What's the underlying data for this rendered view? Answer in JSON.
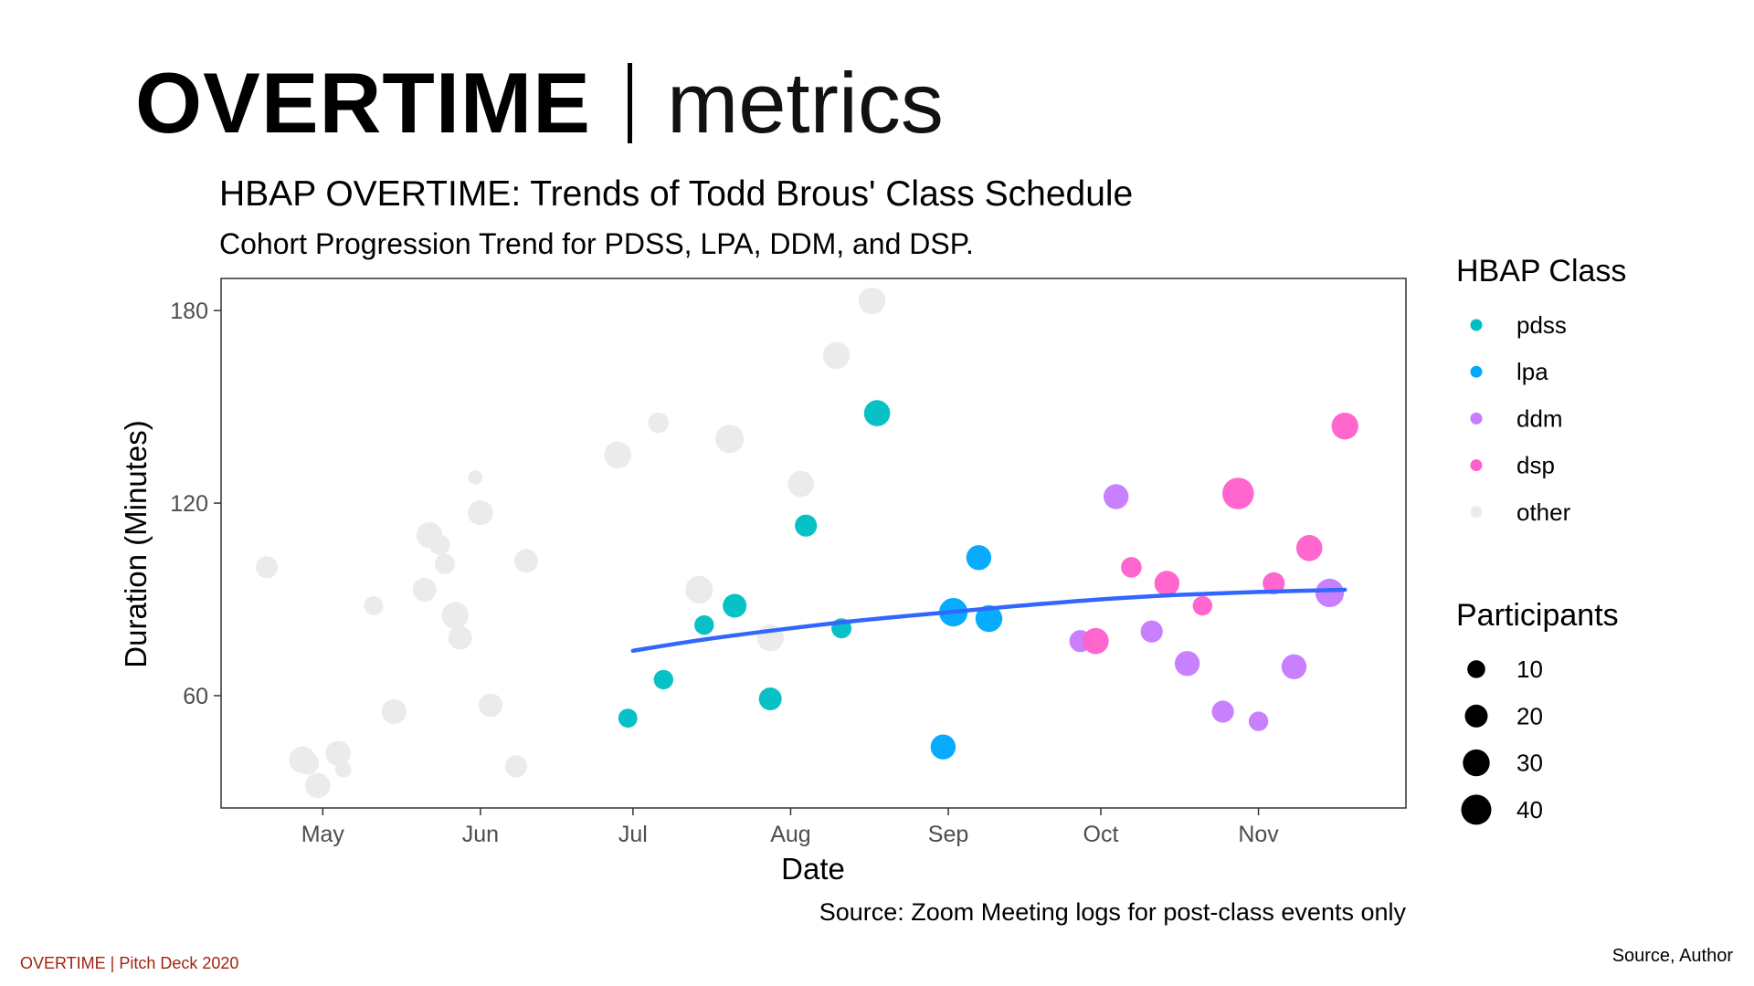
{
  "slide": {
    "title_bold": "OVERTIME",
    "title_light": "metrics",
    "footer_left": "OVERTIME |  Pitch Deck 2020",
    "footer_right": "Source, Author"
  },
  "chart_data": {
    "type": "scatter",
    "title": "HBAP OVERTIME: Trends of Todd Brous' Class Schedule",
    "subtitle": "Cohort Progression Trend for PDSS, LPA, DDM, and DSP.",
    "xlabel": "Date",
    "ylabel": "Duration (Minutes)",
    "caption": "Source: Zoom Meeting logs for post-class events only",
    "x_ticks": [
      "May",
      "Jun",
      "Jul",
      "Aug",
      "Sep",
      "Oct",
      "Nov"
    ],
    "x_tick_dates": [
      "2020-05-01",
      "2020-06-01",
      "2020-07-01",
      "2020-08-01",
      "2020-09-01",
      "2020-10-01",
      "2020-11-01"
    ],
    "xlim": [
      "2020-04-11",
      "2020-11-30"
    ],
    "y_ticks": [
      60,
      120,
      180
    ],
    "ylim": [
      25,
      190
    ],
    "grid": false,
    "legend_placement": "right",
    "colors": {
      "pdss": "#00bfc4",
      "lpa": "#00a9ff",
      "ddm": "#c77cff",
      "dsp": "#ff61cc",
      "other": "#ebebeb",
      "trend": "#3366ff"
    },
    "legend_color": {
      "title": "HBAP Class",
      "items": [
        {
          "key": "pdss",
          "label": "pdss"
        },
        {
          "key": "lpa",
          "label": "lpa"
        },
        {
          "key": "ddm",
          "label": "ddm"
        },
        {
          "key": "dsp",
          "label": "dsp"
        },
        {
          "key": "other",
          "label": "other"
        }
      ]
    },
    "legend_size": {
      "title": "Participants",
      "items": [
        {
          "value": 10,
          "label": "10"
        },
        {
          "value": 20,
          "label": "20"
        },
        {
          "value": 30,
          "label": "30"
        },
        {
          "value": 40,
          "label": "40"
        }
      ]
    },
    "points": [
      {
        "date": "2020-04-20",
        "y": 100,
        "p": 18,
        "cls": "other"
      },
      {
        "date": "2020-04-27",
        "y": 40,
        "p": 30,
        "cls": "other"
      },
      {
        "date": "2020-04-28",
        "y": 39,
        "p": 20,
        "cls": "other"
      },
      {
        "date": "2020-04-30",
        "y": 32,
        "p": 25,
        "cls": "other"
      },
      {
        "date": "2020-05-04",
        "y": 42,
        "p": 25,
        "cls": "other"
      },
      {
        "date": "2020-05-05",
        "y": 37,
        "p": 8,
        "cls": "other"
      },
      {
        "date": "2020-05-11",
        "y": 88,
        "p": 12,
        "cls": "other"
      },
      {
        "date": "2020-05-15",
        "y": 55,
        "p": 25,
        "cls": "other"
      },
      {
        "date": "2020-05-21",
        "y": 93,
        "p": 22,
        "cls": "other"
      },
      {
        "date": "2020-05-22",
        "y": 110,
        "p": 28,
        "cls": "other"
      },
      {
        "date": "2020-05-24",
        "y": 107,
        "p": 15,
        "cls": "other"
      },
      {
        "date": "2020-05-25",
        "y": 101,
        "p": 14,
        "cls": "other"
      },
      {
        "date": "2020-05-27",
        "y": 85,
        "p": 30,
        "cls": "other"
      },
      {
        "date": "2020-05-28",
        "y": 78,
        "p": 22,
        "cls": "other"
      },
      {
        "date": "2020-05-31",
        "y": 128,
        "p": 5,
        "cls": "other"
      },
      {
        "date": "2020-06-01",
        "y": 117,
        "p": 25,
        "cls": "other"
      },
      {
        "date": "2020-06-03",
        "y": 57,
        "p": 22,
        "cls": "other"
      },
      {
        "date": "2020-06-08",
        "y": 38,
        "p": 18,
        "cls": "other"
      },
      {
        "date": "2020-06-10",
        "y": 102,
        "p": 22,
        "cls": "other"
      },
      {
        "date": "2020-06-28",
        "y": 135,
        "p": 30,
        "cls": "other"
      },
      {
        "date": "2020-07-06",
        "y": 145,
        "p": 15,
        "cls": "other"
      },
      {
        "date": "2020-07-14",
        "y": 93,
        "p": 32,
        "cls": "other"
      },
      {
        "date": "2020-07-20",
        "y": 140,
        "p": 35,
        "cls": "other"
      },
      {
        "date": "2020-07-28",
        "y": 78,
        "p": 30,
        "cls": "other"
      },
      {
        "date": "2020-08-03",
        "y": 126,
        "p": 28,
        "cls": "other"
      },
      {
        "date": "2020-08-10",
        "y": 166,
        "p": 30,
        "cls": "other"
      },
      {
        "date": "2020-08-17",
        "y": 183,
        "p": 30,
        "cls": "other"
      },
      {
        "date": "2020-06-30",
        "y": 53,
        "p": 12,
        "cls": "pdss"
      },
      {
        "date": "2020-07-07",
        "y": 65,
        "p": 13,
        "cls": "pdss"
      },
      {
        "date": "2020-07-15",
        "y": 82,
        "p": 13,
        "cls": "pdss"
      },
      {
        "date": "2020-07-21",
        "y": 88,
        "p": 22,
        "cls": "pdss"
      },
      {
        "date": "2020-07-28",
        "y": 59,
        "p": 20,
        "cls": "pdss"
      },
      {
        "date": "2020-08-04",
        "y": 113,
        "p": 18,
        "cls": "pdss"
      },
      {
        "date": "2020-08-11",
        "y": 81,
        "p": 14,
        "cls": "pdss"
      },
      {
        "date": "2020-08-18",
        "y": 148,
        "p": 28,
        "cls": "pdss"
      },
      {
        "date": "2020-08-31",
        "y": 44,
        "p": 25,
        "cls": "lpa"
      },
      {
        "date": "2020-09-02",
        "y": 86,
        "p": 35,
        "cls": "lpa"
      },
      {
        "date": "2020-09-07",
        "y": 103,
        "p": 25,
        "cls": "lpa"
      },
      {
        "date": "2020-09-09",
        "y": 84,
        "p": 30,
        "cls": "lpa"
      },
      {
        "date": "2020-09-27",
        "y": 77,
        "p": 18,
        "cls": "ddm"
      },
      {
        "date": "2020-10-04",
        "y": 122,
        "p": 25,
        "cls": "ddm"
      },
      {
        "date": "2020-10-11",
        "y": 80,
        "p": 18,
        "cls": "ddm"
      },
      {
        "date": "2020-10-18",
        "y": 70,
        "p": 25,
        "cls": "ddm"
      },
      {
        "date": "2020-10-25",
        "y": 55,
        "p": 18,
        "cls": "ddm"
      },
      {
        "date": "2020-11-01",
        "y": 52,
        "p": 13,
        "cls": "ddm"
      },
      {
        "date": "2020-11-08",
        "y": 69,
        "p": 25,
        "cls": "ddm"
      },
      {
        "date": "2020-11-15",
        "y": 92,
        "p": 35,
        "cls": "ddm"
      },
      {
        "date": "2020-09-30",
        "y": 77,
        "p": 28,
        "cls": "dsp"
      },
      {
        "date": "2020-10-07",
        "y": 100,
        "p": 15,
        "cls": "dsp"
      },
      {
        "date": "2020-10-14",
        "y": 95,
        "p": 25,
        "cls": "dsp"
      },
      {
        "date": "2020-10-21",
        "y": 88,
        "p": 13,
        "cls": "dsp"
      },
      {
        "date": "2020-10-28",
        "y": 123,
        "p": 45,
        "cls": "dsp"
      },
      {
        "date": "2020-11-04",
        "y": 95,
        "p": 18,
        "cls": "dsp"
      },
      {
        "date": "2020-11-11",
        "y": 106,
        "p": 28,
        "cls": "dsp"
      },
      {
        "date": "2020-11-18",
        "y": 144,
        "p": 30,
        "cls": "dsp"
      }
    ],
    "trend": {
      "x": [
        "2020-07-01",
        "2020-07-15",
        "2020-08-01",
        "2020-08-15",
        "2020-09-01",
        "2020-09-15",
        "2020-10-01",
        "2020-10-15",
        "2020-11-01",
        "2020-11-18"
      ],
      "y": [
        74,
        77.5,
        81,
        83.5,
        86,
        88,
        90,
        91.3,
        92.3,
        93
      ]
    }
  }
}
